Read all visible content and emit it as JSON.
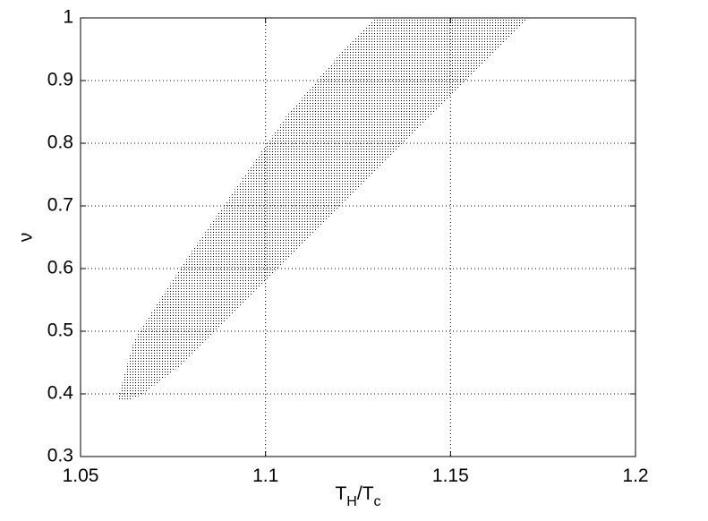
{
  "chart_data": {
    "type": "region",
    "x": [
      1.0604,
      1.0604,
      1.0645,
      1.0706,
      1.0802,
      1.0911,
      1.1056,
      1.1202,
      1.1298,
      1.171,
      1.154,
      1.1395,
      1.1226,
      1.1056,
      1.0911,
      1.0766,
      1.0669,
      1.0633
    ],
    "values": [
      0.39,
      0.4,
      0.486,
      0.543,
      0.629,
      0.721,
      0.843,
      0.943,
      1.0,
      1.0,
      0.9,
      0.814,
      0.714,
      0.614,
      0.529,
      0.443,
      0.4,
      0.39
    ],
    "color": "#000000",
    "xlabel_parts": [
      "T",
      "H",
      "/T",
      "c"
    ],
    "ylabel": "ν",
    "xlim": [
      1.05,
      1.2
    ],
    "xticks": [
      1.05,
      1.1,
      1.15,
      1.2
    ],
    "ylim": [
      0.3,
      1
    ],
    "yticks": [
      0.3,
      0.4,
      0.5,
      0.6,
      0.7,
      0.8,
      0.9,
      1
    ],
    "grid": true
  }
}
